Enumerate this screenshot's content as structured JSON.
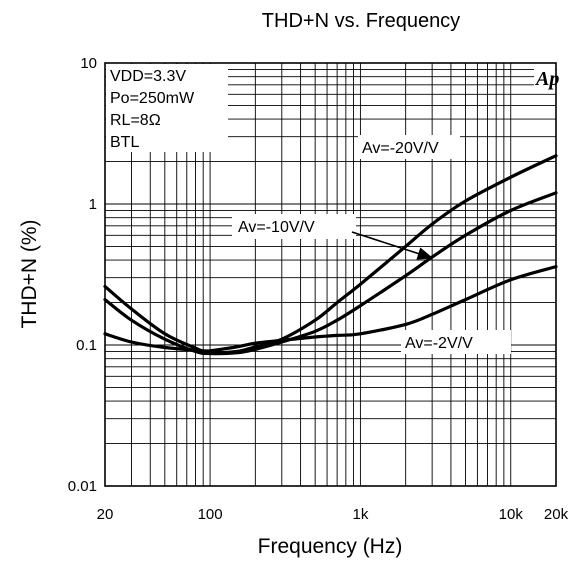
{
  "chart_data": {
    "type": "line",
    "title": "THD+N vs. Frequency",
    "xlabel": "Frequency (Hz)",
    "ylabel": "THD+N (%)",
    "x_scale": "log",
    "y_scale": "log",
    "xlim": [
      20,
      20000
    ],
    "ylim": [
      0.01,
      10
    ],
    "grid": true,
    "x_ticks": [
      {
        "value": 20,
        "label": "20"
      },
      {
        "value": 100,
        "label": "100"
      },
      {
        "value": 1000,
        "label": "1k"
      },
      {
        "value": 10000,
        "label": "10k"
      },
      {
        "value": 20000,
        "label": "20k"
      }
    ],
    "y_ticks": [
      {
        "value": 0.01,
        "label": "0.01"
      },
      {
        "value": 0.1,
        "label": "0.1"
      },
      {
        "value": 1,
        "label": "1"
      },
      {
        "value": 10,
        "label": "10"
      }
    ],
    "conditions": [
      "VDD=3.3V",
      "Po=250mW",
      "RL=8Ω",
      "BTL"
    ],
    "logo": "Ap",
    "series": [
      {
        "name": "Av=-20V/V",
        "x": [
          20,
          30,
          50,
          80,
          100,
          150,
          200,
          300,
          500,
          700,
          1000,
          2000,
          3000,
          5000,
          10000,
          20000
        ],
        "y": [
          0.26,
          0.18,
          0.12,
          0.095,
          0.088,
          0.09,
          0.097,
          0.11,
          0.15,
          0.2,
          0.27,
          0.5,
          0.72,
          1.05,
          1.55,
          2.2
        ]
      },
      {
        "name": "Av=-10V/V",
        "x": [
          20,
          30,
          50,
          80,
          100,
          150,
          200,
          300,
          500,
          700,
          1000,
          2000,
          3000,
          5000,
          10000,
          20000
        ],
        "y": [
          0.21,
          0.15,
          0.11,
          0.09,
          0.087,
          0.088,
          0.093,
          0.105,
          0.125,
          0.15,
          0.19,
          0.31,
          0.42,
          0.6,
          0.9,
          1.2
        ]
      },
      {
        "name": "Av=-2V/V",
        "x": [
          20,
          30,
          50,
          80,
          100,
          150,
          200,
          300,
          500,
          700,
          1000,
          2000,
          3000,
          5000,
          10000,
          20000
        ],
        "y": [
          0.12,
          0.105,
          0.096,
          0.092,
          0.091,
          0.097,
          0.103,
          0.108,
          0.114,
          0.117,
          0.12,
          0.14,
          0.165,
          0.21,
          0.29,
          0.36
        ]
      }
    ],
    "annotations": [
      {
        "text": "Av=-20V/V",
        "series": "Av=-20V/V"
      },
      {
        "text": "Av=-10V/V",
        "series": "Av=-10V/V",
        "arrow": true
      },
      {
        "text": "Av=-2V/V",
        "series": "Av=-2V/V"
      }
    ]
  }
}
